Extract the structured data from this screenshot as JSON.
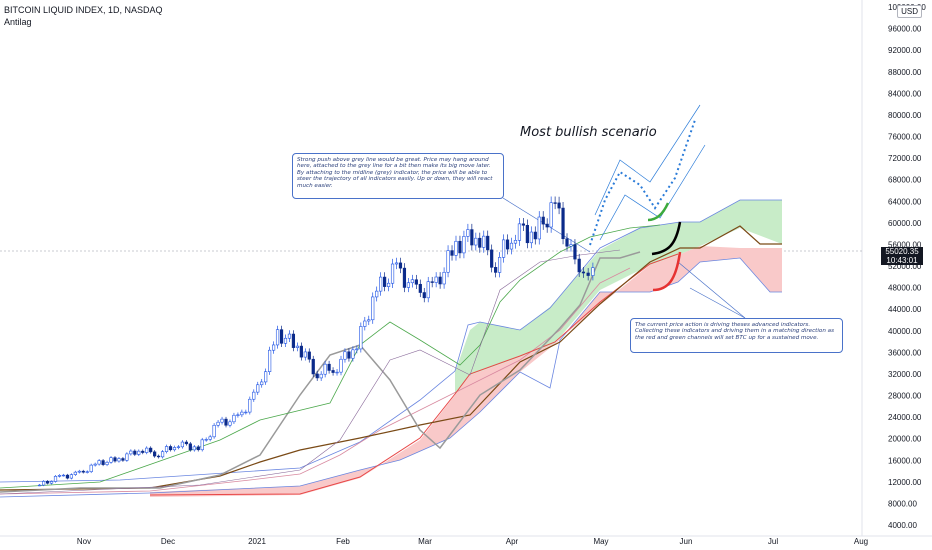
{
  "legend": {
    "symbol_line": "BITCOIN LIQUID INDEX, 1D, NASDAQ",
    "indicator": "Antilag"
  },
  "currency": "USD",
  "annotations": {
    "scenario": "Most bullish scenario",
    "note1": "Strong push above grey line would be great. Price may hang around here, attached to the grey line for a bit then make its big move later. By attaching to the midline (grey) indicator, the price will be able to steer the trajectory of all indicators easily. Up or down, they will react much easier.",
    "note2": "The current price action is driving theses advanced indicators. Collecting these indicators and driving them in a matching direction as the red and green channels will set BTC up for a sustained move."
  },
  "price_badge": {
    "price": "55020.35",
    "countdown": "10:43:01"
  },
  "colors": {
    "up": "#1e53e5",
    "down": "#0b2a8a",
    "green_cloud": "#c8ecc8",
    "red_cloud": "#f9c9c9",
    "grey_line": "#9a9a9a",
    "brown_line": "#7a4a16",
    "red_line": "#e84848",
    "green_line": "#4ca84c",
    "blue_band": "#6a86e0",
    "pink_line": "#d88aa0",
    "draw_black": "#000000",
    "draw_red": "#e63232",
    "draw_green": "#3daa3d",
    "proj_blue": "#2a7bd8"
  },
  "chart_data": {
    "type": "candlestick",
    "x_ticks": [
      "Nov",
      "Dec",
      "2021",
      "Feb",
      "Mar",
      "Apr",
      "May",
      "Jun",
      "Jul",
      "Aug"
    ],
    "y_ticks": [
      "4000.00",
      "8000.00",
      "12000.00",
      "16000.00",
      "20000.00",
      "24000.00",
      "28000.00",
      "32000.00",
      "36000.00",
      "40000.00",
      "44000.00",
      "48000.00",
      "52000.00",
      "56000.00",
      "60000.00",
      "64000.00",
      "68000.00",
      "72000.00",
      "76000.00",
      "80000.00",
      "84000.00",
      "88000.00",
      "92000.00",
      "96000.00",
      "100000.00"
    ],
    "ylim": [
      3000,
      101000
    ],
    "current_price": 55020.35,
    "candles": [
      {
        "t": "2020-10-15",
        "close": 11400
      },
      {
        "t": "2020-10-22",
        "close": 12900
      },
      {
        "t": "2020-10-29",
        "close": 13500
      },
      {
        "t": "2020-11-05",
        "close": 15500
      },
      {
        "t": "2020-11-12",
        "close": 16200
      },
      {
        "t": "2020-11-19",
        "close": 18000
      },
      {
        "t": "2020-11-26",
        "close": 17200
      },
      {
        "t": "2020-12-03",
        "close": 19100
      },
      {
        "t": "2020-12-10",
        "close": 18200
      },
      {
        "t": "2020-12-17",
        "close": 22800
      },
      {
        "t": "2020-12-24",
        "close": 23700
      },
      {
        "t": "2020-12-31",
        "close": 29000
      },
      {
        "t": "2021-01-07",
        "close": 39400
      },
      {
        "t": "2021-01-14",
        "close": 37300
      },
      {
        "t": "2021-01-21",
        "close": 32100
      },
      {
        "t": "2021-01-28",
        "close": 33500
      },
      {
        "t": "2021-02-04",
        "close": 37600
      },
      {
        "t": "2021-02-11",
        "close": 47500
      },
      {
        "t": "2021-02-18",
        "close": 51500
      },
      {
        "t": "2021-02-25",
        "close": 47000
      },
      {
        "t": "2021-03-04",
        "close": 48500
      },
      {
        "t": "2021-03-11",
        "close": 56000
      },
      {
        "t": "2021-03-18",
        "close": 58000
      },
      {
        "t": "2021-03-25",
        "close": 52500
      },
      {
        "t": "2021-04-01",
        "close": 58700
      },
      {
        "t": "2021-04-08",
        "close": 58000
      },
      {
        "t": "2021-04-15",
        "close": 63200
      },
      {
        "t": "2021-04-22",
        "close": 51800
      },
      {
        "t": "2021-04-25",
        "close": 49000
      },
      {
        "t": "2021-04-30",
        "close": 55020
      }
    ]
  }
}
